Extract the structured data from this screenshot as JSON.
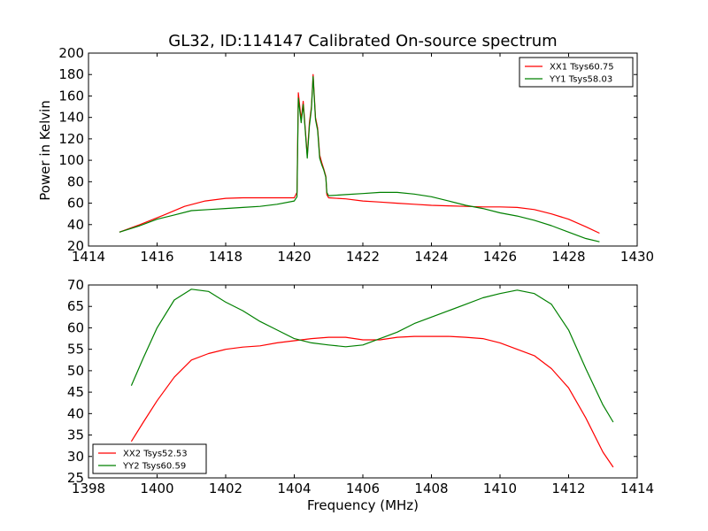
{
  "figure": {
    "title": "GL32, ID:114147 Calibrated On-source spectrum",
    "xlabel": "Frequency (MHz)",
    "ylabel": "Power in Kelvin"
  },
  "chart_data": [
    {
      "type": "line",
      "xlim": [
        1414,
        1430
      ],
      "ylim": [
        20,
        200
      ],
      "xticks": [
        "1414",
        "1416",
        "1418",
        "1420",
        "1422",
        "1424",
        "1426",
        "1428",
        "1430"
      ],
      "yticks": [
        "20",
        "40",
        "60",
        "80",
        "100",
        "120",
        "140",
        "160",
        "180",
        "200"
      ],
      "legend_position": "top-right",
      "grid": false,
      "series": [
        {
          "name": "XX1 Tsys60.75",
          "color": "#ff0000",
          "points": [
            [
              1414.9,
              33
            ],
            [
              1415.5,
              40
            ],
            [
              1416.2,
              49
            ],
            [
              1416.8,
              57
            ],
            [
              1417.4,
              62
            ],
            [
              1418.0,
              64.5
            ],
            [
              1418.5,
              65
            ],
            [
              1419.0,
              65
            ],
            [
              1419.5,
              65
            ],
            [
              1420.0,
              65
            ],
            [
              1420.08,
              70
            ],
            [
              1420.12,
              163
            ],
            [
              1420.2,
              138
            ],
            [
              1420.26,
              155
            ],
            [
              1420.32,
              130
            ],
            [
              1420.38,
              104
            ],
            [
              1420.44,
              135
            ],
            [
              1420.5,
              150
            ],
            [
              1420.55,
              180
            ],
            [
              1420.62,
              140
            ],
            [
              1420.68,
              130
            ],
            [
              1420.74,
              105
            ],
            [
              1420.8,
              98
            ],
            [
              1420.86,
              92
            ],
            [
              1420.92,
              85
            ],
            [
              1420.95,
              68
            ],
            [
              1421.0,
              65
            ],
            [
              1421.5,
              64
            ],
            [
              1422.0,
              62
            ],
            [
              1422.5,
              61
            ],
            [
              1423.0,
              60
            ],
            [
              1423.5,
              59
            ],
            [
              1424.0,
              58
            ],
            [
              1424.5,
              57.5
            ],
            [
              1425.0,
              57
            ],
            [
              1425.5,
              56.5
            ],
            [
              1426.0,
              56.5
            ],
            [
              1426.5,
              56
            ],
            [
              1427.0,
              54
            ],
            [
              1427.5,
              50
            ],
            [
              1428.0,
              45
            ],
            [
              1428.5,
              38
            ],
            [
              1428.9,
              32
            ]
          ]
        },
        {
          "name": "YY1 Tsys58.03",
          "color": "#008000",
          "points": [
            [
              1414.9,
              33
            ],
            [
              1415.5,
              39
            ],
            [
              1416.0,
              45
            ],
            [
              1416.5,
              49
            ],
            [
              1417.0,
              53
            ],
            [
              1417.5,
              54
            ],
            [
              1418.0,
              55
            ],
            [
              1418.5,
              56
            ],
            [
              1419.0,
              57
            ],
            [
              1419.5,
              59
            ],
            [
              1420.0,
              62
            ],
            [
              1420.08,
              66
            ],
            [
              1420.12,
              158
            ],
            [
              1420.2,
              135
            ],
            [
              1420.26,
              152
            ],
            [
              1420.32,
              128
            ],
            [
              1420.38,
              102
            ],
            [
              1420.44,
              132
            ],
            [
              1420.5,
              148
            ],
            [
              1420.55,
              178
            ],
            [
              1420.62,
              138
            ],
            [
              1420.68,
              128
            ],
            [
              1420.74,
              102
            ],
            [
              1420.8,
              96
            ],
            [
              1420.86,
              91
            ],
            [
              1420.92,
              84
            ],
            [
              1420.95,
              70
            ],
            [
              1421.0,
              67
            ],
            [
              1421.5,
              68
            ],
            [
              1422.0,
              69
            ],
            [
              1422.5,
              70
            ],
            [
              1423.0,
              70
            ],
            [
              1423.5,
              68.5
            ],
            [
              1424.0,
              66
            ],
            [
              1424.5,
              62
            ],
            [
              1425.0,
              58
            ],
            [
              1425.5,
              55
            ],
            [
              1426.0,
              51
            ],
            [
              1426.5,
              48
            ],
            [
              1427.0,
              44
            ],
            [
              1427.5,
              39
            ],
            [
              1428.0,
              33
            ],
            [
              1428.5,
              27
            ],
            [
              1428.9,
              24
            ]
          ]
        }
      ]
    },
    {
      "type": "line",
      "xlim": [
        1398,
        1414
      ],
      "ylim": [
        25,
        70
      ],
      "xticks": [
        "1398",
        "1400",
        "1402",
        "1404",
        "1406",
        "1408",
        "1410",
        "1412",
        "1414"
      ],
      "yticks": [
        "25",
        "30",
        "35",
        "40",
        "45",
        "50",
        "55",
        "60",
        "65",
        "70"
      ],
      "legend_position": "bottom-left",
      "grid": false,
      "series": [
        {
          "name": "XX2 Tsys52.53",
          "color": "#ff0000",
          "points": [
            [
              1399.25,
              33.5
            ],
            [
              1399.6,
              38
            ],
            [
              1400.0,
              43
            ],
            [
              1400.5,
              48.5
            ],
            [
              1401.0,
              52.5
            ],
            [
              1401.5,
              54
            ],
            [
              1402.0,
              55
            ],
            [
              1402.5,
              55.5
            ],
            [
              1403.0,
              55.8
            ],
            [
              1403.5,
              56.5
            ],
            [
              1404.0,
              57
            ],
            [
              1404.5,
              57.5
            ],
            [
              1405.0,
              57.8
            ],
            [
              1405.5,
              57.8
            ],
            [
              1406.0,
              57.2
            ],
            [
              1406.5,
              57.2
            ],
            [
              1407.0,
              57.8
            ],
            [
              1407.5,
              58
            ],
            [
              1408.0,
              58
            ],
            [
              1408.5,
              58
            ],
            [
              1409.0,
              57.8
            ],
            [
              1409.5,
              57.5
            ],
            [
              1410.0,
              56.5
            ],
            [
              1410.5,
              55
            ],
            [
              1411.0,
              53.5
            ],
            [
              1411.5,
              50.5
            ],
            [
              1412.0,
              46
            ],
            [
              1412.5,
              39
            ],
            [
              1413.0,
              31
            ],
            [
              1413.3,
              27.5
            ]
          ]
        },
        {
          "name": "YY2 Tsys60.59",
          "color": "#008000",
          "points": [
            [
              1399.25,
              46.5
            ],
            [
              1399.6,
              53
            ],
            [
              1400.0,
              60
            ],
            [
              1400.5,
              66.5
            ],
            [
              1401.0,
              69
            ],
            [
              1401.5,
              68.5
            ],
            [
              1402.0,
              66
            ],
            [
              1402.5,
              64
            ],
            [
              1403.0,
              61.5
            ],
            [
              1403.5,
              59.5
            ],
            [
              1404.0,
              57.5
            ],
            [
              1404.5,
              56.5
            ],
            [
              1405.0,
              56
            ],
            [
              1405.5,
              55.6
            ],
            [
              1406.0,
              56
            ],
            [
              1406.5,
              57.5
            ],
            [
              1407.0,
              59
            ],
            [
              1407.5,
              61
            ],
            [
              1408.0,
              62.5
            ],
            [
              1408.5,
              64
            ],
            [
              1409.0,
              65.5
            ],
            [
              1409.5,
              67
            ],
            [
              1410.0,
              68
            ],
            [
              1410.5,
              68.8
            ],
            [
              1411.0,
              68
            ],
            [
              1411.5,
              65.5
            ],
            [
              1412.0,
              59.5
            ],
            [
              1412.5,
              50.5
            ],
            [
              1413.0,
              42
            ],
            [
              1413.3,
              38
            ]
          ]
        }
      ]
    }
  ]
}
